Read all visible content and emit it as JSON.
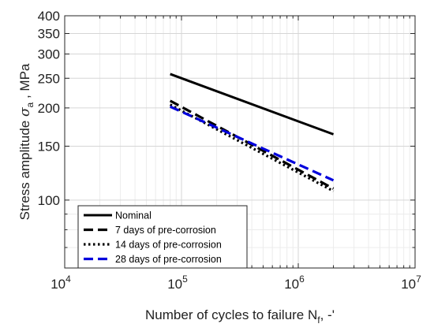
{
  "chart_data": {
    "type": "line",
    "xlabel": "Number of cycles to failure N",
    "xlabel_subscript": "f",
    "xlabel_suffix": ", -'",
    "ylabel": "Stress amplitude ",
    "ylabel_symbol": "σ",
    "ylabel_subscript": "a",
    "ylabel_suffix": " , MPa",
    "xscale": "log",
    "yscale": "log",
    "xlim": [
      10000,
      10000000
    ],
    "ylim": [
      60,
      400
    ],
    "grid": true,
    "legend_position": "bottom-left",
    "x_ticks": [
      {
        "value": 10000,
        "base": "10",
        "exp": "4"
      },
      {
        "value": 100000,
        "base": "10",
        "exp": "5"
      },
      {
        "value": 1000000,
        "base": "10",
        "exp": "6"
      },
      {
        "value": 10000000,
        "base": "10",
        "exp": "7"
      }
    ],
    "y_ticks": [
      {
        "value": 100,
        "label": "100"
      },
      {
        "value": 150,
        "label": "150"
      },
      {
        "value": 200,
        "label": "200"
      },
      {
        "value": 250,
        "label": "250"
      },
      {
        "value": 300,
        "label": "300"
      },
      {
        "value": 350,
        "label": "350"
      },
      {
        "value": 400,
        "label": "400"
      }
    ],
    "series": [
      {
        "name": "Nominal",
        "color": "#000000",
        "style": "solid",
        "x": [
          80000,
          2000000
        ],
        "y": [
          258,
          164
        ]
      },
      {
        "name": "7 days of pre-corrosion",
        "color": "#000000",
        "style": "dashed",
        "x": [
          80000,
          2000000
        ],
        "y": [
          211,
          109
        ]
      },
      {
        "name": "14 days of pre-corrosion",
        "color": "#000000",
        "style": "dotted",
        "x": [
          80000,
          2000000
        ],
        "y": [
          205,
          107
        ]
      },
      {
        "name": "28 days of pre-corrosion",
        "color": "#0000dd",
        "style": "dashed",
        "x": [
          80000,
          2000000
        ],
        "y": [
          202,
          116
        ]
      }
    ]
  }
}
